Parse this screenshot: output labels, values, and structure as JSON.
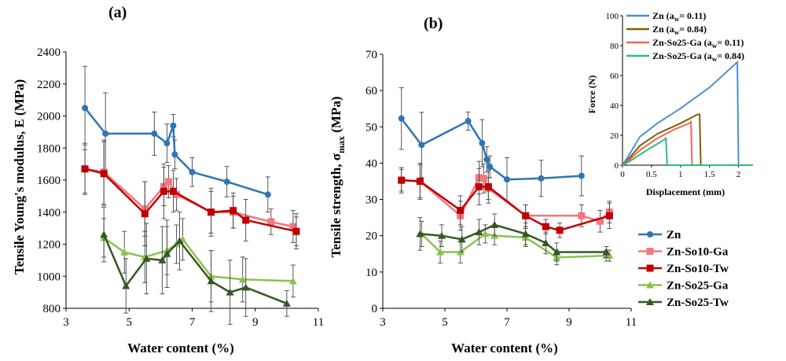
{
  "colors": {
    "Zn": "#2E75B6",
    "Zn-So10-Ga": "#F4777F",
    "Zn-So10-Tw": "#C00000",
    "Zn-So25-Ga": "#8CC152",
    "Zn-So25-Tw": "#375623",
    "inset_Zn_low": "#4F8FD0",
    "inset_Zn_high": "#806000",
    "inset_So25_low": "#F2645A",
    "inset_So25_high": "#2DBE7E"
  },
  "legend": {
    "entries": [
      "Zn",
      "Zn-So10-Ga",
      "Zn-So10-Tw",
      "Zn-So25-Ga",
      "Zn-So25-Tw"
    ],
    "placement": "right"
  },
  "chart_data": [
    {
      "type": "line",
      "panel": "(a)",
      "xlabel": "Water content (%)",
      "ylabel": "Tensile Young's modulus, E (MPa)",
      "xlim": [
        3,
        11
      ],
      "ylim": [
        800,
        2400
      ],
      "xticks": [
        "3",
        "5",
        "7",
        "9",
        "11"
      ],
      "yticks": [
        "800",
        "1000",
        "1200",
        "1400",
        "1600",
        "1800",
        "2000",
        "2200",
        "2400"
      ],
      "series": [
        {
          "name": "Zn",
          "marker": "circle",
          "x": [
            3.6,
            4.25,
            5.8,
            6.2,
            6.4,
            6.45,
            7.0,
            8.1,
            9.4
          ],
          "y": [
            2050,
            1890,
            1890,
            1830,
            1940,
            1760,
            1650,
            1590,
            1510
          ],
          "err": [
            260,
            255,
            135,
            120,
            70,
            90,
            90,
            95,
            110
          ]
        },
        {
          "name": "Zn-So10-Ga",
          "marker": "square",
          "x": [
            3.6,
            4.2,
            5.5,
            6.1,
            6.25,
            6.5,
            7.6,
            8.3,
            9.5,
            10.2,
            10.3
          ],
          "y": [
            1670,
            1650,
            1420,
            1560,
            1590,
            1510,
            1400,
            1400,
            1340,
            1310,
            1280
          ],
          "err": [
            150,
            200,
            170,
            120,
            100,
            100,
            130,
            100,
            80,
            100,
            90
          ]
        },
        {
          "name": "Zn-So10-Tw",
          "marker": "square",
          "x": [
            3.6,
            4.2,
            5.5,
            6.1,
            6.4,
            7.6,
            8.3,
            8.7,
            10.3
          ],
          "y": [
            1670,
            1640,
            1390,
            1530,
            1530,
            1400,
            1410,
            1350,
            1280
          ],
          "err": [
            160,
            200,
            200,
            170,
            130,
            150,
            110,
            130,
            110
          ]
        },
        {
          "name": "Zn-So25-Ga",
          "marker": "triangle",
          "x": [
            4.2,
            4.85,
            5.5,
            6.2,
            6.5,
            6.7,
            7.6,
            8.6,
            10.2
          ],
          "y": [
            1240,
            1150,
            1120,
            1160,
            1200,
            1230,
            1000,
            980,
            970
          ],
          "err": [
            120,
            130,
            160,
            150,
            120,
            130,
            160,
            140,
            100
          ]
        },
        {
          "name": "Zn-So25-Tw",
          "marker": "triangle",
          "x": [
            4.2,
            4.9,
            5.55,
            6.05,
            6.2,
            6.6,
            7.6,
            8.2,
            8.7,
            10.0
          ],
          "y": [
            1260,
            940,
            1110,
            1100,
            1140,
            1220,
            970,
            900,
            930,
            830
          ],
          "err": [
            170,
            170,
            220,
            210,
            210,
            180,
            190,
            200,
            180,
            80
          ]
        }
      ]
    },
    {
      "type": "line",
      "panel": "(b)",
      "xlabel": "Water content (%)",
      "ylabel": "Tensile strength, σmax (MPa)",
      "ylabel_main": "Tensile strength, σ",
      "ylabel_sub": "max",
      "ylabel_unit": " (MPa)",
      "xlim": [
        3,
        11
      ],
      "ylim": [
        0,
        70
      ],
      "xticks": [
        "3",
        "5",
        "7",
        "9",
        "11"
      ],
      "yticks": [
        "0",
        "10",
        "20",
        "30",
        "40",
        "50",
        "60",
        "70"
      ],
      "series": [
        {
          "name": "Zn",
          "marker": "circle",
          "x": [
            3.6,
            4.25,
            5.75,
            6.2,
            6.35,
            6.45,
            7.0,
            8.1,
            9.4
          ],
          "y": [
            52.3,
            45.0,
            51.6,
            45.5,
            41.0,
            39.0,
            35.5,
            35.8,
            36.5
          ],
          "err": [
            8.5,
            9.0,
            2.5,
            6.5,
            3.5,
            3.0,
            6.0,
            5.0,
            5.5
          ]
        },
        {
          "name": "Zn-So10-Ga",
          "marker": "square",
          "x": [
            3.6,
            4.2,
            5.5,
            6.1,
            6.25,
            6.4,
            7.6,
            9.4,
            10.0,
            10.3
          ],
          "y": [
            35.3,
            35.0,
            25.5,
            36.0,
            35.8,
            33.0,
            25.5,
            25.5,
            24.0,
            26.5
          ],
          "err": [
            3.0,
            5.0,
            4.0,
            4.5,
            4.0,
            3.0,
            3.0,
            3.0,
            3.0,
            3.0
          ]
        },
        {
          "name": "Zn-So10-Tw",
          "marker": "square",
          "x": [
            3.6,
            4.2,
            5.5,
            6.1,
            6.4,
            7.6,
            8.25,
            8.7,
            10.3
          ],
          "y": [
            35.3,
            35.0,
            27.0,
            33.5,
            33.5,
            25.5,
            22.5,
            21.5,
            25.5
          ],
          "err": [
            3.5,
            4.5,
            4.0,
            5.0,
            4.5,
            3.0,
            2.0,
            2.0,
            3.5
          ]
        },
        {
          "name": "Zn-So25-Ga",
          "marker": "triangle",
          "x": [
            4.25,
            4.85,
            5.5,
            6.3,
            6.6,
            7.6,
            8.6,
            10.2,
            10.3
          ],
          "y": [
            20.5,
            15.5,
            15.5,
            20.5,
            20.0,
            19.5,
            14.0,
            14.5,
            14.5
          ],
          "err": [
            3.5,
            3.0,
            3.0,
            2.5,
            2.5,
            2.5,
            2.0,
            1.5,
            1.5
          ]
        },
        {
          "name": "Zn-So25-Tw",
          "marker": "triangle",
          "x": [
            4.2,
            4.9,
            5.55,
            6.1,
            6.6,
            7.6,
            8.25,
            8.6,
            10.2
          ],
          "y": [
            20.5,
            20.0,
            19.0,
            21.0,
            23.0,
            20.5,
            18.0,
            15.5,
            15.5
          ],
          "err": [
            4.5,
            3.0,
            3.5,
            3.5,
            3.0,
            3.0,
            3.0,
            2.5,
            1.5
          ]
        }
      ]
    },
    {
      "type": "line",
      "panel": "inset",
      "xlabel": "Displacement (mm)",
      "ylabel": "Force (N)",
      "xlim": [
        0,
        2.25
      ],
      "ylim": [
        0,
        100
      ],
      "xticks": [
        "0",
        "0.5",
        "1",
        "1.5",
        "2"
      ],
      "yticks": [
        "0",
        "20",
        "40",
        "60",
        "80",
        "100"
      ],
      "legend": [
        {
          "base": "Zn (a",
          "sub": "w",
          "tail": "= 0.11)"
        },
        {
          "base": "Zn (a",
          "sub": "w",
          "tail": "= 0.84)"
        },
        {
          "base": "Zn-So25-Ga (a",
          "sub": "w",
          "tail": "= 0.11)"
        },
        {
          "base": "Zn-So25-Ga (a",
          "sub": "w",
          "tail": "= 0.84)"
        }
      ],
      "series": [
        {
          "name": "Zn (aw= 0.11)",
          "x": [
            0,
            0.1,
            0.3,
            0.6,
            1.0,
            1.5,
            1.98,
            2.0,
            2.25
          ],
          "y": [
            0,
            6,
            19,
            28,
            38,
            52,
            69,
            0,
            0
          ]
        },
        {
          "name": "Zn (aw= 0.84)",
          "x": [
            0,
            0.1,
            0.3,
            0.6,
            1.0,
            1.3,
            1.33,
            1.35,
            2.25
          ],
          "y": [
            0,
            4,
            13,
            21,
            28,
            34,
            34,
            0,
            0
          ]
        },
        {
          "name": "Zn-So25-Ga (aw= 0.11)",
          "x": [
            0,
            0.1,
            0.3,
            0.6,
            0.9,
            1.15,
            1.18,
            1.2,
            2.25
          ],
          "y": [
            0,
            3,
            10,
            18,
            24,
            28,
            29,
            0,
            0
          ]
        },
        {
          "name": "Zn-So25-Ga (aw= 0.84)",
          "x": [
            0,
            0.1,
            0.3,
            0.5,
            0.72,
            0.75,
            0.77,
            2.25
          ],
          "y": [
            0,
            2,
            7,
            12,
            17,
            18,
            0,
            0
          ]
        }
      ]
    }
  ]
}
